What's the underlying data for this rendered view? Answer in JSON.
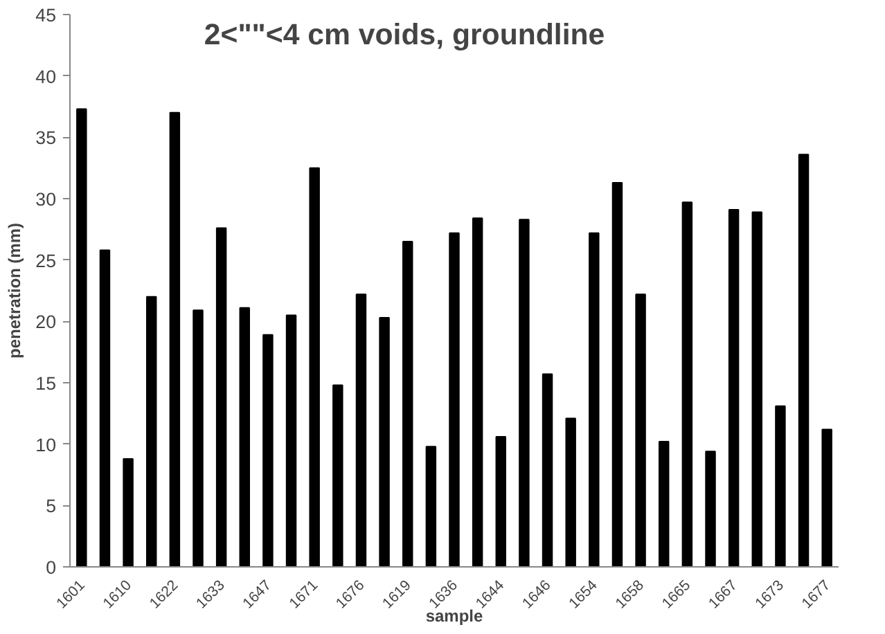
{
  "chart_data": {
    "type": "bar",
    "title": "2<\"\"<4 cm voids, groundline",
    "xlabel": "sample",
    "ylabel": "penetration (mm)",
    "categories": [
      "1601",
      null,
      "1610",
      null,
      "1622",
      null,
      "1633",
      null,
      "1647",
      null,
      "1671",
      null,
      "1676",
      null,
      "1619",
      null,
      "1636",
      null,
      "1644",
      null,
      "1646",
      null,
      "1654",
      null,
      "1658",
      null,
      "1665",
      null,
      "1667",
      null,
      "1673",
      null,
      "1677"
    ],
    "values": [
      37.3,
      25.8,
      8.8,
      22.0,
      37.0,
      20.9,
      27.6,
      21.1,
      18.9,
      20.5,
      32.5,
      14.8,
      22.2,
      20.3,
      26.5,
      9.8,
      27.2,
      28.4,
      10.6,
      28.3,
      15.7,
      12.1,
      27.2,
      31.3,
      22.2,
      10.2,
      29.7,
      9.4,
      29.1,
      28.9,
      13.1,
      33.6,
      11.2
    ],
    "color": "#000000",
    "ylim": [
      0,
      45
    ],
    "yticks": [
      0,
      5,
      10,
      15,
      20,
      25,
      30,
      35,
      40,
      45
    ],
    "grid": false
  }
}
